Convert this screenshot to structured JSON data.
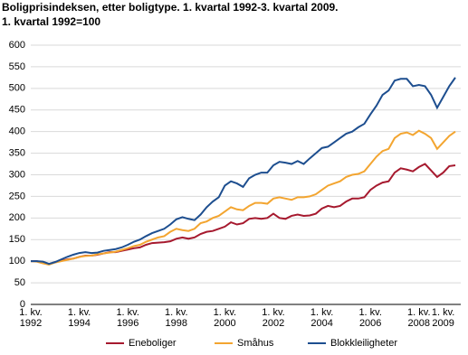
{
  "chart_data": {
    "type": "line",
    "title": "Boligprisindeksen, etter boligtype. 1. kvartal 1992-3. kvartal 2009.",
    "subtitle": "1. kvartal 1992=100",
    "categories": [
      "1. kv. 1992",
      null,
      null,
      null,
      null,
      null,
      null,
      null,
      "1. kv. 1994",
      null,
      null,
      null,
      null,
      null,
      null,
      null,
      "1. kv. 1996",
      null,
      null,
      null,
      null,
      null,
      null,
      null,
      "1. kv. 1998",
      null,
      null,
      null,
      null,
      null,
      null,
      null,
      "1. kv. 2000",
      null,
      null,
      null,
      null,
      null,
      null,
      null,
      "1. kv. 2002",
      null,
      null,
      null,
      null,
      null,
      null,
      null,
      "1. kv. 2004",
      null,
      null,
      null,
      null,
      null,
      null,
      null,
      "1. kv. 2006",
      null,
      null,
      null,
      null,
      null,
      null,
      null,
      "1. kv. 2008",
      null,
      null,
      null,
      "1. kv. 2009",
      null,
      null
    ],
    "series": [
      {
        "name": "Eneboliger",
        "color": "#a6192e",
        "values": [
          100,
          100,
          97,
          93,
          98,
          101,
          104,
          106,
          110,
          113,
          113,
          115,
          118,
          121,
          121,
          124,
          127,
          130,
          132,
          138,
          142,
          143,
          144,
          146,
          152,
          155,
          152,
          155,
          163,
          168,
          170,
          175,
          180,
          190,
          185,
          188,
          198,
          200,
          198,
          200,
          210,
          200,
          198,
          205,
          208,
          205,
          206,
          210,
          222,
          228,
          225,
          228,
          238,
          245,
          245,
          248,
          265,
          275,
          282,
          285,
          305,
          315,
          312,
          308,
          318,
          325,
          310,
          295,
          305,
          320,
          322
        ]
      },
      {
        "name": "Småhus",
        "color": "#f3a530",
        "values": [
          100,
          99,
          95,
          92,
          97,
          100,
          103,
          106,
          110,
          112,
          113,
          116,
          118,
          120,
          122,
          126,
          130,
          135,
          138,
          145,
          150,
          155,
          158,
          168,
          175,
          172,
          170,
          175,
          188,
          192,
          200,
          205,
          215,
          225,
          220,
          218,
          228,
          235,
          235,
          233,
          245,
          248,
          245,
          242,
          248,
          248,
          250,
          255,
          265,
          275,
          280,
          285,
          295,
          300,
          302,
          308,
          325,
          342,
          355,
          360,
          385,
          395,
          398,
          392,
          402,
          395,
          385,
          360,
          375,
          390,
          400
        ]
      },
      {
        "name": "Blokkleiligheter",
        "color": "#1d4e8f",
        "values": [
          100,
          100,
          99,
          94,
          98,
          104,
          110,
          115,
          119,
          121,
          119,
          120,
          124,
          126,
          128,
          132,
          138,
          145,
          150,
          158,
          165,
          170,
          175,
          185,
          197,
          202,
          198,
          195,
          208,
          225,
          238,
          248,
          275,
          285,
          280,
          272,
          292,
          300,
          305,
          305,
          322,
          330,
          328,
          325,
          332,
          325,
          338,
          350,
          362,
          365,
          375,
          385,
          395,
          400,
          410,
          418,
          440,
          460,
          485,
          495,
          518,
          522,
          522,
          505,
          508,
          505,
          485,
          455,
          480,
          505,
          525
        ]
      }
    ],
    "ylim": [
      0,
      600
    ],
    "yticks": [
      0,
      50,
      100,
      150,
      200,
      250,
      300,
      350,
      400,
      450,
      500,
      550,
      600
    ],
    "grid": true
  }
}
